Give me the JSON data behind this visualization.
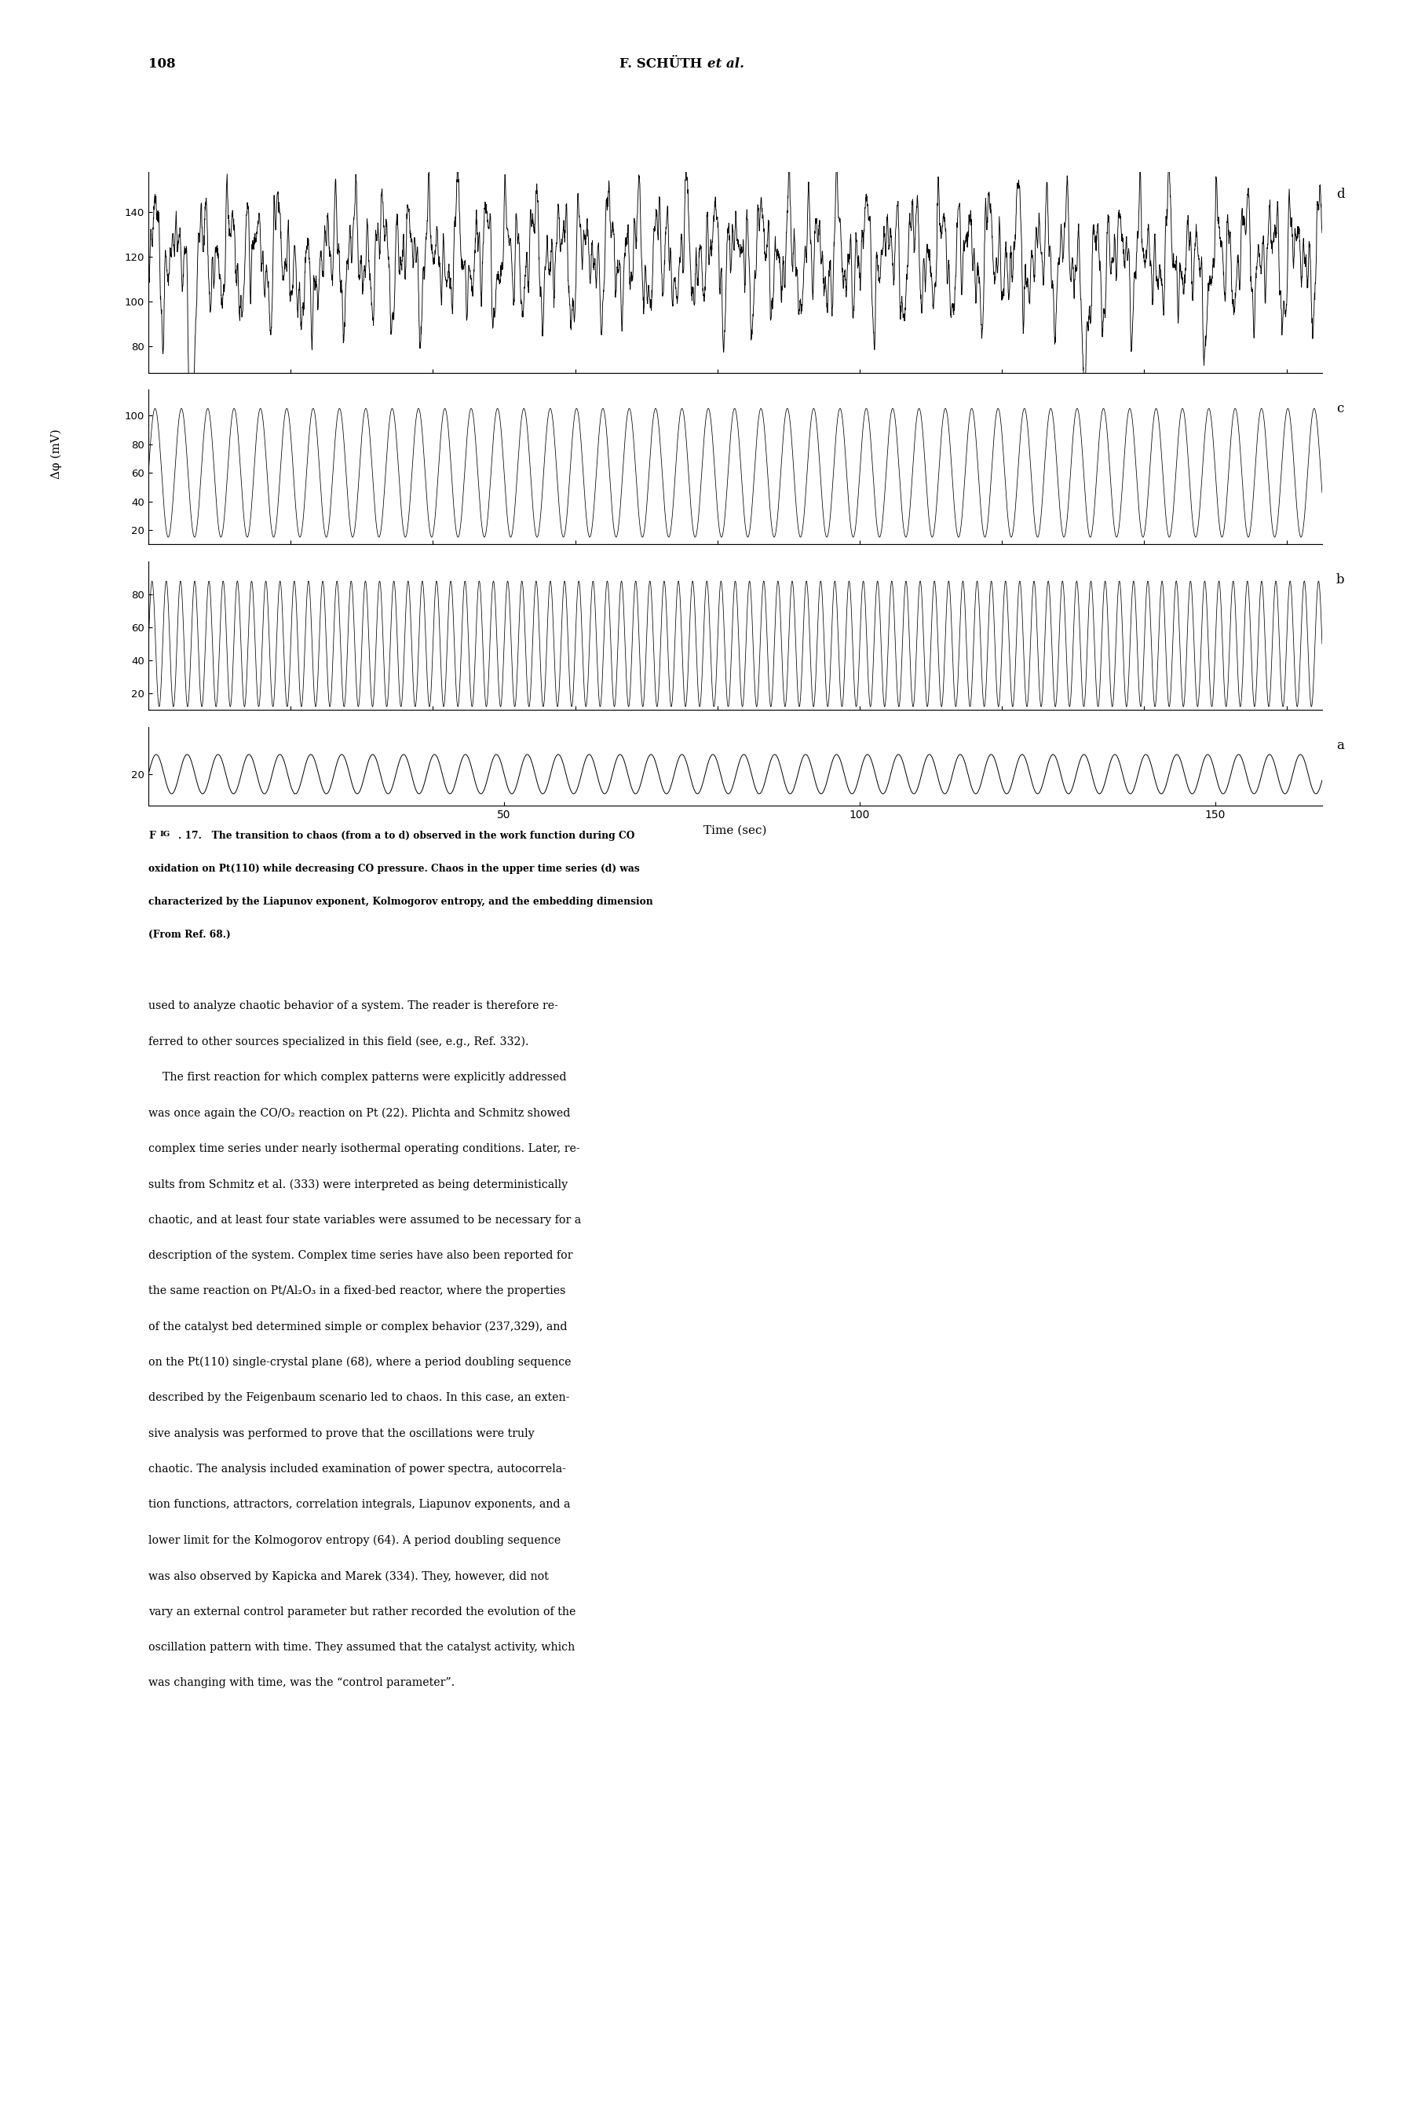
{
  "page_number": "108",
  "header_normal": "F. SCHÜTH ",
  "header_italic": "et al.",
  "ylabel": "Δφ (mV)",
  "xlabel": "Time (sec)",
  "panel_d": {
    "yticks": [
      80,
      100,
      120,
      140
    ],
    "ylim": [
      68,
      158
    ],
    "label": "d"
  },
  "panel_c": {
    "yticks": [
      20,
      40,
      60,
      80,
      100
    ],
    "ylim": [
      10,
      118
    ],
    "label": "c"
  },
  "panel_b": {
    "yticks": [
      20,
      40,
      60,
      80
    ],
    "ylim": [
      10,
      100
    ],
    "label": "b"
  },
  "panel_a": {
    "yticks": [
      20
    ],
    "ylim": [
      12,
      32
    ],
    "label": "a"
  },
  "xticks": [
    50,
    100,
    150
  ],
  "xmax": 165,
  "background_color": "#ffffff",
  "line_color": "#000000",
  "caption_lines": [
    "Fig. 17.   The transition to chaos (from a to d) observed in the work function during CO",
    "oxidation on Pt(110) while decreasing CO pressure. Chaos in the upper time series (d) was",
    "characterized by the Liapunov exponent, Kolmogorov entropy, and the embedding dimension",
    "(From Ref. 68.)"
  ],
  "body_lines": [
    [
      "used to analyze chaotic behavior of a system. The reader is therefore re-",
      "normal"
    ],
    [
      "ferred to other sources specialized in this field (see, e.g., Ref. ",
      "normal"
    ],
    [
      "332",
      "italic"
    ],
    [
      ").",
      "normal"
    ],
    [
      "    The first reaction for which complex patterns were explicitly addressed",
      "normal"
    ],
    [
      "was once again the CO/O₂ reaction on Pt (22). Plichta and Schmitz showed",
      "normal"
    ],
    [
      "complex time series under nearly isothermal operating conditions. Later, re-",
      "normal"
    ],
    [
      "sults from Schmitz ",
      "normal"
    ],
    [
      "et al.",
      "italic"
    ],
    [
      " (333) were interpreted as being deterministically",
      "normal"
    ],
    [
      "chaotic, and at least four state variables were assumed to be necessary for a",
      "normal"
    ],
    [
      "description of the system. Complex time series have also been reported for",
      "normal"
    ],
    [
      "the same reaction on Pt/Al₂O₃ in a fixed-bed reactor, where the properties",
      "normal"
    ],
    [
      "of the catalyst bed determined simple or complex behavior (237,329), and",
      "normal"
    ],
    [
      "on the Pt(110) single-crystal plane (68), where a period doubling sequence",
      "normal"
    ],
    [
      "described by the Feigenbaum scenario led to chaos. In this case, an exten-",
      "normal"
    ],
    [
      "sive analysis was performed to prove that the oscillations were truly",
      "normal"
    ],
    [
      "chaotic. The analysis included examination of power spectra, autocorrela-",
      "normal"
    ],
    [
      "tion functions, attractors, correlation integrals, Liapunov exponents, and a",
      "normal"
    ],
    [
      "lower limit for the Kolmogorov entropy (64). A period doubling sequence",
      "normal"
    ],
    [
      "was also observed by Kapicka and Marek (334). They, however, did not",
      "normal"
    ],
    [
      "vary an external control parameter but rather recorded the evolution of the",
      "normal"
    ],
    [
      "oscillation pattern with time. They assumed that the catalyst activity, which",
      "normal"
    ],
    [
      "was changing with time, was the “control parameter”.",
      "normal"
    ]
  ]
}
